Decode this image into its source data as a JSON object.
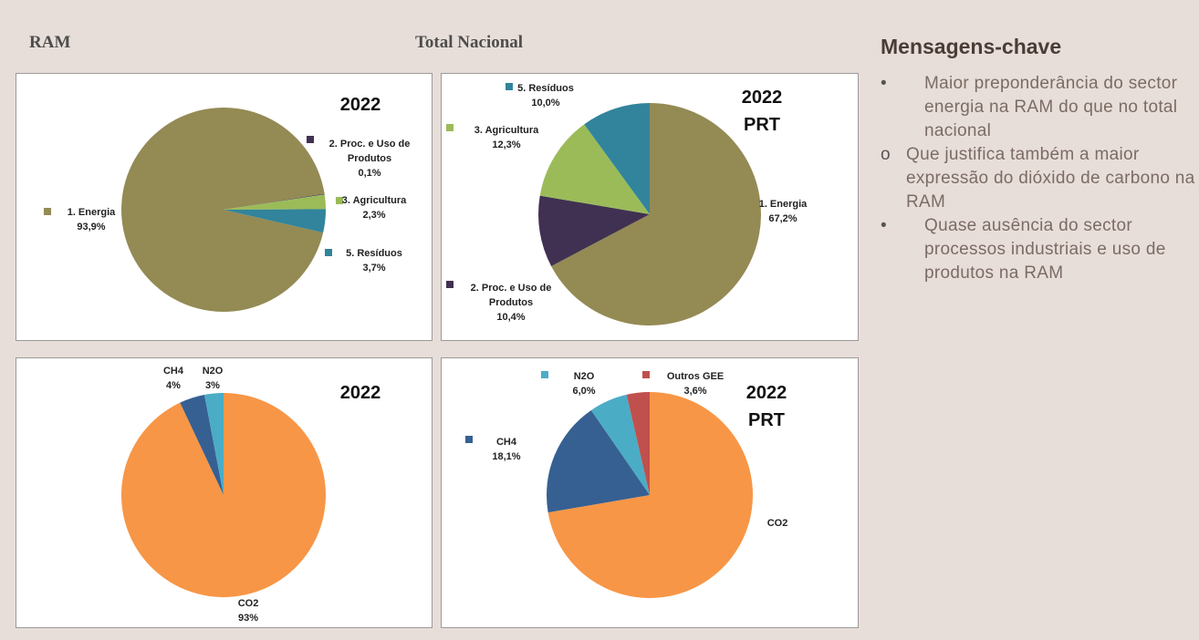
{
  "header": {
    "left": "RAM",
    "center": "Total Nacional"
  },
  "chart_data": [
    {
      "type": "pie",
      "title": "2022",
      "categories": [
        "1. Energia",
        "2. Proc. e Uso de Produtos",
        "3. Agricultura",
        "5. Resíduos"
      ],
      "values": [
        93.9,
        0.1,
        2.3,
        3.7
      ],
      "value_labels": [
        "93,9%",
        "0,1%",
        "2,3%",
        "3,7%"
      ],
      "colors": [
        "#948a54",
        "#403152",
        "#9bbb59",
        "#31849b"
      ]
    },
    {
      "type": "pie",
      "title": "2022",
      "subtitle": "PRT",
      "categories": [
        "1. Energia",
        "2. Proc. e Uso de Produtos",
        "3. Agricultura",
        "5. Resíduos"
      ],
      "values": [
        67.2,
        10.4,
        12.3,
        10.0
      ],
      "value_labels": [
        "67,2%",
        "10,4%",
        "12,3%",
        "10,0%"
      ],
      "colors": [
        "#948a54",
        "#403152",
        "#9bbb59",
        "#31849b"
      ]
    },
    {
      "type": "pie",
      "title": "2022",
      "categories": [
        "CO2",
        "CH4",
        "N2O"
      ],
      "values": [
        93,
        4,
        3
      ],
      "value_labels": [
        "93%",
        "4%",
        "3%"
      ],
      "colors": [
        "#f79646",
        "#366092",
        "#4bacc6"
      ]
    },
    {
      "type": "pie",
      "title": "2022",
      "subtitle": "PRT",
      "categories": [
        "CO2",
        "CH4",
        "N2O",
        "Outros GEE"
      ],
      "values": [
        72.3,
        18.1,
        6.0,
        3.6
      ],
      "value_labels": [
        null,
        "18,1%",
        "6,0%",
        "3,6%"
      ],
      "colors": [
        "#f79646",
        "#366092",
        "#4bacc6",
        "#c0504d"
      ]
    }
  ],
  "key_messages": {
    "title": "Mensagens-chave",
    "items": [
      {
        "text": "Maior preponderância do sector energia na RAM do que no total nacional",
        "subitems": [
          "Que justifica também a maior expressão do dióxido de carbono na RAM"
        ]
      },
      {
        "text": "Quase ausência do sector processos industriais e uso de produtos na RAM"
      }
    ]
  }
}
